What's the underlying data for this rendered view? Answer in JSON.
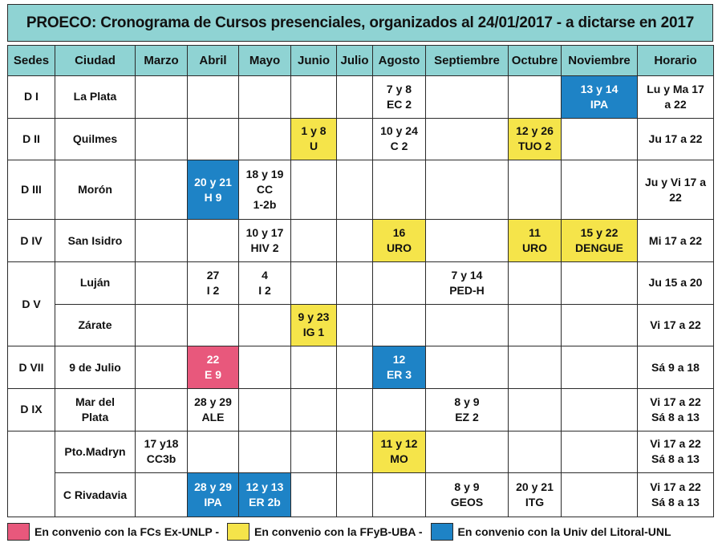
{
  "title": "PROECO: Cronograma de Cursos presenciales, organizados al 24/01/2017 - a dictarse en 2017",
  "headers": [
    "Sedes",
    "Ciudad",
    "Marzo",
    "Abril",
    "Mayo",
    "Junio",
    "Julio",
    "Agosto",
    "Septiembre",
    "Octubre",
    "Noviembre",
    "Horario"
  ],
  "colors": {
    "header": "#8fd3d3",
    "pink": "#e8587c",
    "yellow": "#f5e44a",
    "blue": "#1e83c6"
  },
  "rows": [
    {
      "sede": "D I",
      "ciudad": "La Plata",
      "marzo": "",
      "abril": "",
      "mayo": "",
      "junio": "",
      "julio": "",
      "agosto": "7 y 8|EC 2",
      "septiembre": "",
      "octubre": "",
      "noviembre": "13 y 14|IPA",
      "horario": "Lu y Ma 17|a 22"
    },
    {
      "sede": "D II",
      "ciudad": "Quilmes",
      "marzo": "",
      "abril": "",
      "mayo": "",
      "junio": "1 y 8|U",
      "julio": "",
      "agosto": "10 y 24|C 2",
      "septiembre": "",
      "octubre": "12 y 26|TUO 2",
      "noviembre": "",
      "horario": "Ju 17 a 22"
    },
    {
      "sede": "D III",
      "ciudad": "Morón",
      "marzo": "",
      "abril": "20 y 21|H 9",
      "mayo": "18 y 19|CC|1-2b",
      "junio": "",
      "julio": "",
      "agosto": "",
      "septiembre": "",
      "octubre": "",
      "noviembre": "",
      "horario": "Ju y Vi 17 a 22"
    },
    {
      "sede": "D IV",
      "ciudad": "San Isidro",
      "marzo": "",
      "abril": "",
      "mayo": "10 y 17|HIV 2",
      "junio": "",
      "julio": "",
      "agosto": "16|URO",
      "septiembre": "",
      "octubre": "11|URO",
      "noviembre": "15 y 22|DENGUE",
      "horario": "Mi 17 a 22"
    },
    {
      "sede": "D V",
      "ciudad": "Luján",
      "marzo": "",
      "abril": "27|I 2",
      "mayo": "4|I 2",
      "junio": "",
      "julio": "",
      "agosto": "",
      "septiembre": "7 y 14|PED-H",
      "octubre": "",
      "noviembre": "",
      "horario": "Ju 15 a 20"
    },
    {
      "sede": "",
      "ciudad": "Zárate",
      "marzo": "",
      "abril": "",
      "mayo": "",
      "junio": "9 y 23|IG 1",
      "julio": "",
      "agosto": "",
      "septiembre": "",
      "octubre": "",
      "noviembre": "",
      "horario": "Vi 17 a 22"
    },
    {
      "sede": "D VII",
      "ciudad": "9 de Julio",
      "marzo": "",
      "abril": "22|E 9",
      "mayo": "",
      "junio": "",
      "julio": "",
      "agosto": "12|ER 3",
      "septiembre": "",
      "octubre": "",
      "noviembre": "",
      "horario": "Sá 9 a 18"
    },
    {
      "sede": "D IX",
      "ciudad": "Mar del|Plata",
      "marzo": "",
      "abril": "28 y 29|ALE",
      "mayo": "",
      "junio": "",
      "julio": "",
      "agosto": "",
      "septiembre": "8 y 9|EZ 2",
      "octubre": "",
      "noviembre": "",
      "horario": "Vi 17 a 22|Sá 8 a 13"
    },
    {
      "sede": "",
      "ciudad": "Pto.Madryn",
      "marzo": "17 y18|CC3b",
      "abril": "",
      "mayo": "",
      "junio": "",
      "julio": "",
      "agosto": "11 y 12|MO",
      "septiembre": "",
      "octubre": "",
      "noviembre": "",
      "horario": "Vi 17 a 22|Sá 8 a 13"
    },
    {
      "sede": "",
      "ciudad": "C Rivadavia",
      "marzo": "",
      "abril": "28 y 29|IPA",
      "mayo": "12 y 13|ER 2b",
      "junio": "",
      "julio": "",
      "agosto": "",
      "septiembre": "8 y 9|GEOS",
      "octubre": "20 y 21|ITG",
      "noviembre": "",
      "horario": "Vi 17 a 22|Sá 8 a 13"
    }
  ],
  "highlights": {
    "0.noviembre": "blue",
    "1.junio": "yellow",
    "1.octubre": "yellow",
    "2.abril": "blue",
    "3.agosto": "yellow",
    "3.octubre": "yellow",
    "3.noviembre": "yellow",
    "5.junio": "yellow",
    "6.abril": "pink",
    "6.agosto": "blue",
    "8.agosto": "yellow",
    "9.abril": "blue",
    "9.mayo": "blue"
  },
  "legend": [
    {
      "color": "pink",
      "text": "En convenio con la FCs Ex-UNLP -"
    },
    {
      "color": "yellow",
      "text": "En convenio con la FFyB-UBA -"
    },
    {
      "color": "blue",
      "text": "En convenio con la Univ del Litoral-UNL"
    }
  ]
}
